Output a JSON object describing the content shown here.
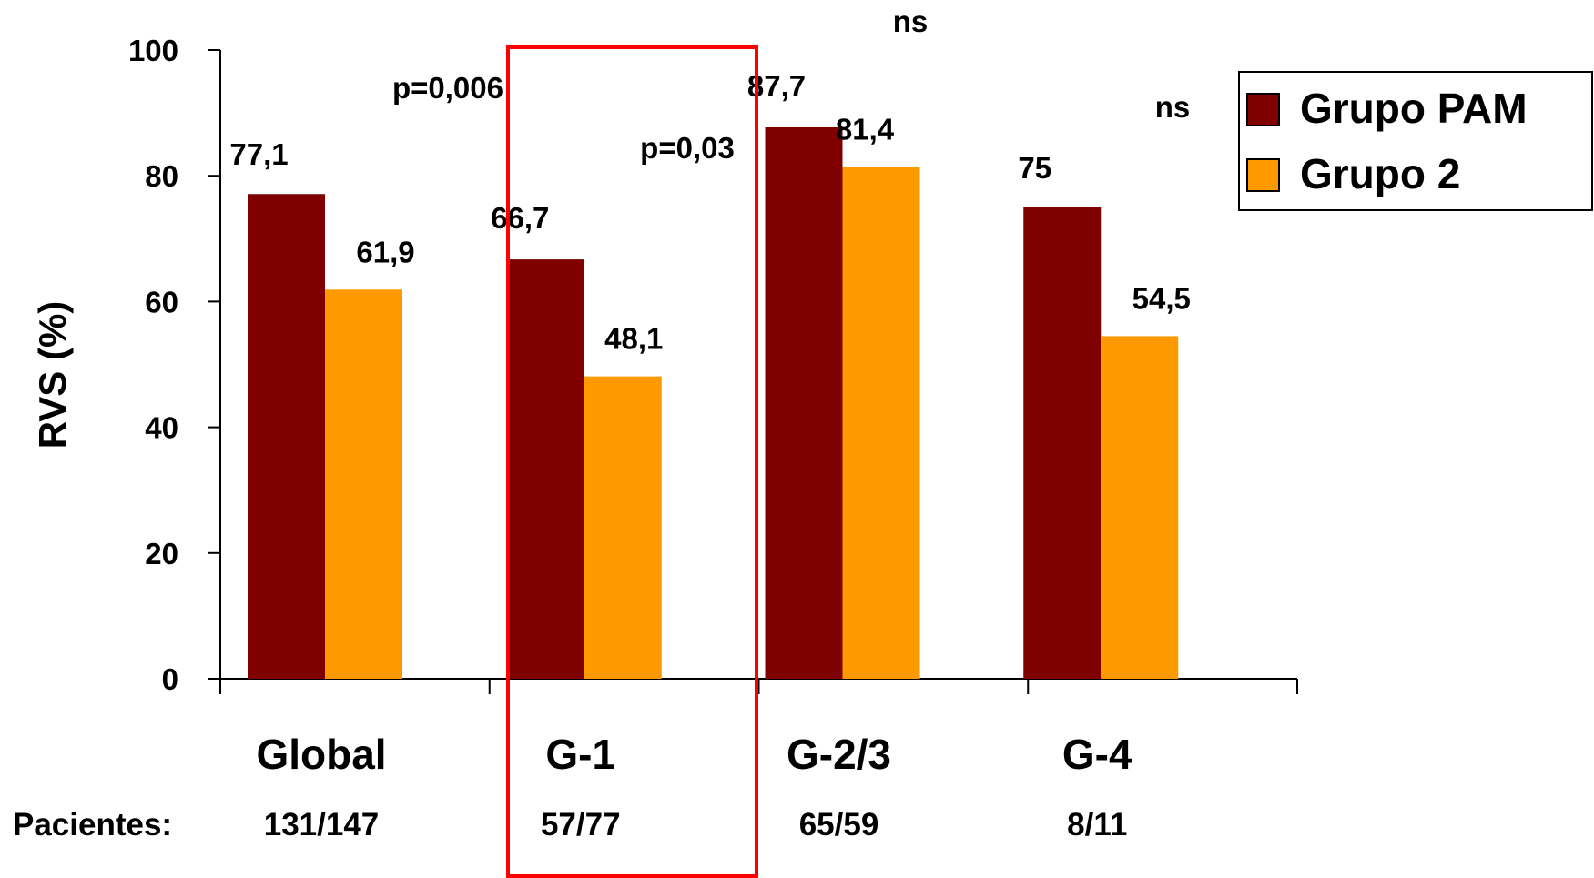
{
  "chart_data": {
    "type": "bar",
    "categories": [
      "Global",
      "G-1",
      "G-2/3",
      "G-4"
    ],
    "patients": [
      "131/147",
      "57/77",
      "65/59",
      "8/11"
    ],
    "patients_label": "Pacientes:",
    "series": [
      {
        "name": "Grupo PAM",
        "color": "#800000",
        "values": [
          77.1,
          66.7,
          87.7,
          75
        ]
      },
      {
        "name": "Grupo 2",
        "color": "#FF9900",
        "values": [
          61.9,
          48.1,
          81.4,
          54.5
        ]
      }
    ],
    "value_labels": [
      [
        "77,1",
        "66,7",
        "87,7",
        "75"
      ],
      [
        "61,9",
        "48,1",
        "81,4",
        "54,5"
      ]
    ],
    "significance": [
      "p=0,006",
      "p=0,03",
      "ns",
      "ns"
    ],
    "ylabel": "RVS (%)",
    "ylim": [
      0,
      100
    ],
    "yticks": [
      "0",
      "20",
      "40",
      "60",
      "80",
      "100"
    ],
    "highlight_category": "G-1",
    "highlight_color": "#FF0000",
    "legend_position": "top-right",
    "grid": false
  }
}
